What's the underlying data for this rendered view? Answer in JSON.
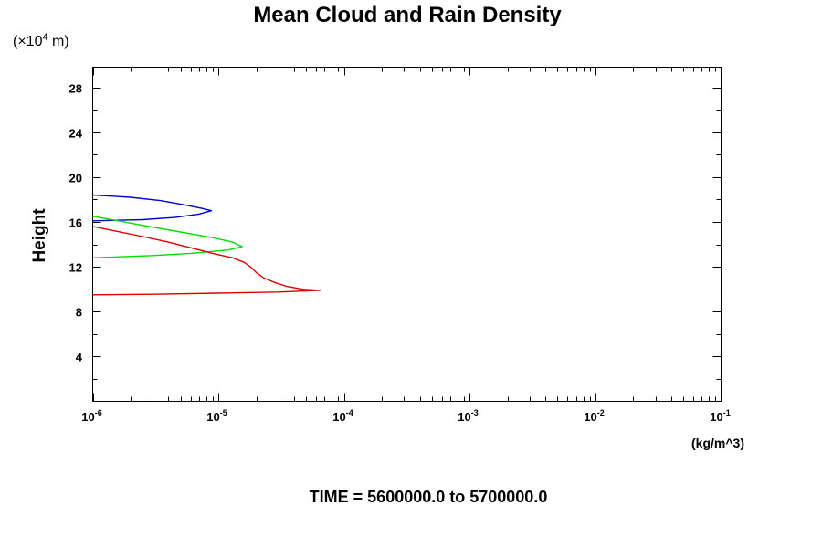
{
  "chart_data": {
    "type": "line",
    "title": "Mean Cloud and Rain Density",
    "footer": "TIME = 5600000.0 to 5700000.0",
    "xunit": "(kg/m^3)",
    "ylabel": "Height",
    "yunit_prefix": "(×10",
    "yunit_exp": "4",
    "yunit_suffix": " m)",
    "xscale": "log",
    "xlim": [
      1e-06,
      0.1
    ],
    "ylim": [
      0,
      29.8
    ],
    "grid": false,
    "legend": "none",
    "xticks": [
      {
        "base": "10",
        "exp": "-6",
        "value": 1e-06
      },
      {
        "base": "10",
        "exp": "-5",
        "value": 1e-05
      },
      {
        "base": "10",
        "exp": "-4",
        "value": 0.0001
      },
      {
        "base": "10",
        "exp": "-3",
        "value": 0.001
      },
      {
        "base": "10",
        "exp": "-2",
        "value": 0.01
      },
      {
        "base": "10",
        "exp": "-1",
        "value": 0.1
      }
    ],
    "yticks": [
      {
        "label": "4",
        "value": 4
      },
      {
        "label": "8",
        "value": 8
      },
      {
        "label": "12",
        "value": 12
      },
      {
        "label": "16",
        "value": 16
      },
      {
        "label": "20",
        "value": 20
      },
      {
        "label": "24",
        "value": 24
      },
      {
        "label": "28",
        "value": 28
      }
    ],
    "series": [
      {
        "color": "#0000cc",
        "points": [
          [
            1e-06,
            18.4
          ],
          [
            2e-06,
            18.2
          ],
          [
            3.5e-06,
            17.9
          ],
          [
            5.5e-06,
            17.5
          ],
          [
            7.5e-06,
            17.2
          ],
          [
            8.8e-06,
            17.0
          ],
          [
            7e-06,
            16.7
          ],
          [
            4.5e-06,
            16.4
          ],
          [
            2.5e-06,
            16.2
          ],
          [
            1e-06,
            16.1
          ]
        ]
      },
      {
        "color": "#00dd00",
        "points": [
          [
            1e-06,
            16.5
          ],
          [
            1.6e-06,
            16.1
          ],
          [
            2.8e-06,
            15.6
          ],
          [
            5e-06,
            15.1
          ],
          [
            9e-06,
            14.6
          ],
          [
            1.3e-05,
            14.2
          ],
          [
            1.55e-05,
            13.8
          ],
          [
            1.2e-05,
            13.5
          ],
          [
            6e-06,
            13.2
          ],
          [
            3e-06,
            13.0
          ],
          [
            1e-06,
            12.8
          ]
        ]
      },
      {
        "color": "#dd0000",
        "points": [
          [
            1e-06,
            15.6
          ],
          [
            1.5e-06,
            15.2
          ],
          [
            2.5e-06,
            14.7
          ],
          [
            4e-06,
            14.2
          ],
          [
            6e-06,
            13.7
          ],
          [
            9e-06,
            13.2
          ],
          [
            1.3e-05,
            12.8
          ],
          [
            1.6e-05,
            12.4
          ],
          [
            1.8e-05,
            12.0
          ],
          [
            2e-05,
            11.5
          ],
          [
            2.3e-05,
            11.0
          ],
          [
            2.8e-05,
            10.6
          ],
          [
            3.5e-05,
            10.25
          ],
          [
            4.7e-05,
            10.0
          ],
          [
            6.5e-05,
            9.9
          ],
          [
            3e-05,
            9.75
          ],
          [
            1e-05,
            9.65
          ],
          [
            3e-06,
            9.55
          ],
          [
            1e-06,
            9.5
          ]
        ]
      }
    ]
  }
}
